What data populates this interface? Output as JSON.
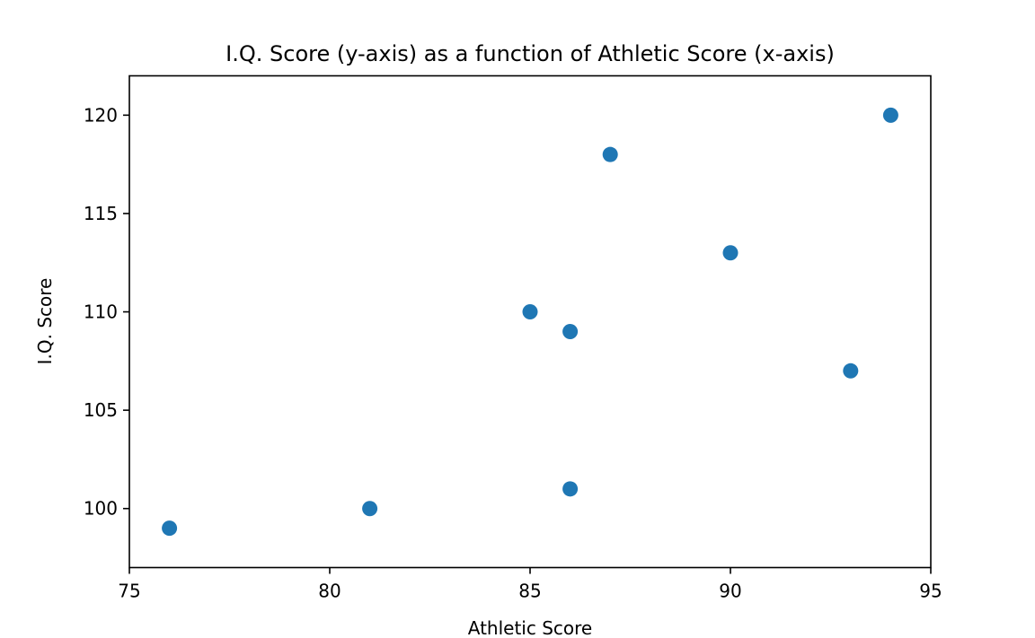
{
  "chart_data": {
    "type": "scatter",
    "title": "I.Q. Score (y-axis) as a function of Athletic Score (x-axis)",
    "xlabel": "Athletic Score",
    "ylabel": "I.Q. Score",
    "xlim": [
      75,
      95
    ],
    "ylim": [
      97,
      122
    ],
    "xticks": [
      75,
      80,
      85,
      90,
      95
    ],
    "yticks": [
      100,
      105,
      110,
      115,
      120
    ],
    "grid": false,
    "series": [
      {
        "color": "#1f77b4",
        "x": [
          76,
          81,
          85,
          86,
          86,
          87,
          90,
          93,
          94
        ],
        "y": [
          99,
          100,
          110,
          109,
          101,
          118,
          113,
          107,
          120
        ]
      }
    ]
  }
}
